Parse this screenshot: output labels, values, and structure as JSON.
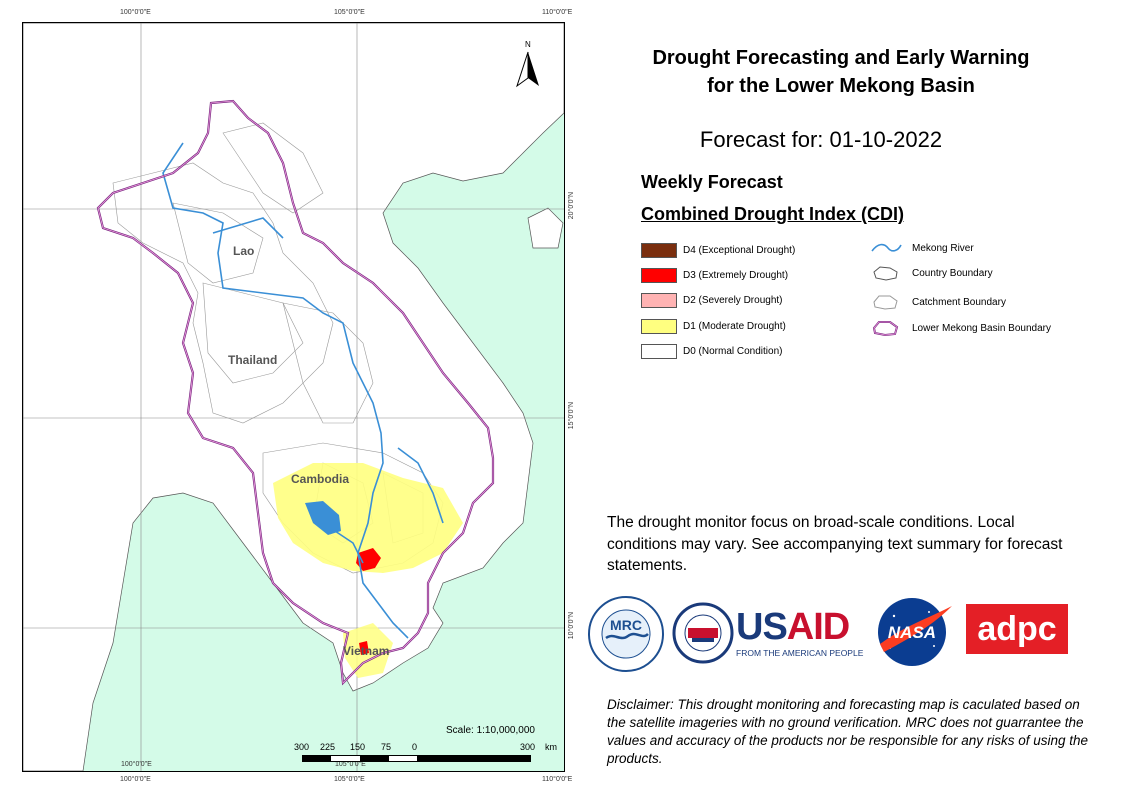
{
  "map": {
    "grid_labels": {
      "lon_100": "100°0'0\"E",
      "lon_105": "105°0'0\"E",
      "lon_110": "110°0'0\"E",
      "lat_20": "20°0'0\"N",
      "lat_15": "15°0'0\"N",
      "lat_10": "10°0'0\"N"
    },
    "countries": {
      "lao": "Lao",
      "thailand": "Thailand",
      "cambodia": "Cambodia",
      "vietnam": "Vietnam"
    },
    "north_letter": "N",
    "scale": {
      "text": "Scale: 1:10,000,000",
      "ticks": [
        "300",
        "225",
        "150",
        "75",
        "0",
        "300",
        "km"
      ]
    },
    "colors": {
      "sea": "#d4fbe8",
      "land": "#ffffff",
      "river": "#3a8fd6",
      "basin_boundary": "#7b2a83",
      "d1": "#ffff80",
      "d2": "#ffb3b3",
      "d3": "#ff0000",
      "d4": "#7a2e0e"
    }
  },
  "header": {
    "title_line1": "Drought Forecasting and Early Warning",
    "title_line2": "for the Lower Mekong Basin",
    "forecast_for": "Forecast for: 01-10-2022",
    "weekly": "Weekly Forecast",
    "cdi": "Combined Drought Index (CDI)"
  },
  "legend": {
    "classes": [
      {
        "label": "D4 (Exceptional Drought)",
        "color": "#7a2e0e"
      },
      {
        "label": "D3 (Extremely Drought)",
        "color": "#ff0000"
      },
      {
        "label": "D2 (Severely Drought)",
        "color": "#ffb3b3"
      },
      {
        "label": "D1 (Moderate Drought)",
        "color": "#ffff80"
      },
      {
        "label": "D0 (Normal Condition)",
        "color": "#ffffff"
      }
    ],
    "symbols": [
      {
        "label": "Mekong River",
        "icon": "river-line-icon"
      },
      {
        "label": "Country Boundary",
        "icon": "country-boundary-icon"
      },
      {
        "label": "Catchment Boundary",
        "icon": "catchment-boundary-icon"
      },
      {
        "label": "Lower Mekong Basin Boundary",
        "icon": "basin-boundary-icon"
      }
    ]
  },
  "note": {
    "text": "The drought monitor focus on broad-scale conditions. Local conditions may vary. See accompanying text summary for forecast statements."
  },
  "logos": {
    "usaid_word": "USAID",
    "usaid_sub": "FROM THE AMERICAN PEOPLE",
    "nasa": "NASA",
    "adpc": "adpc",
    "mrc": "MRC"
  },
  "disclaimer": {
    "text": "Disclaimer: This drought monitoring and forecasting map is caculated based on the satellite imageries with no ground verification. MRC does not guarrantee the values and accuracy of the products nor be responsible for any risks of using the products."
  }
}
